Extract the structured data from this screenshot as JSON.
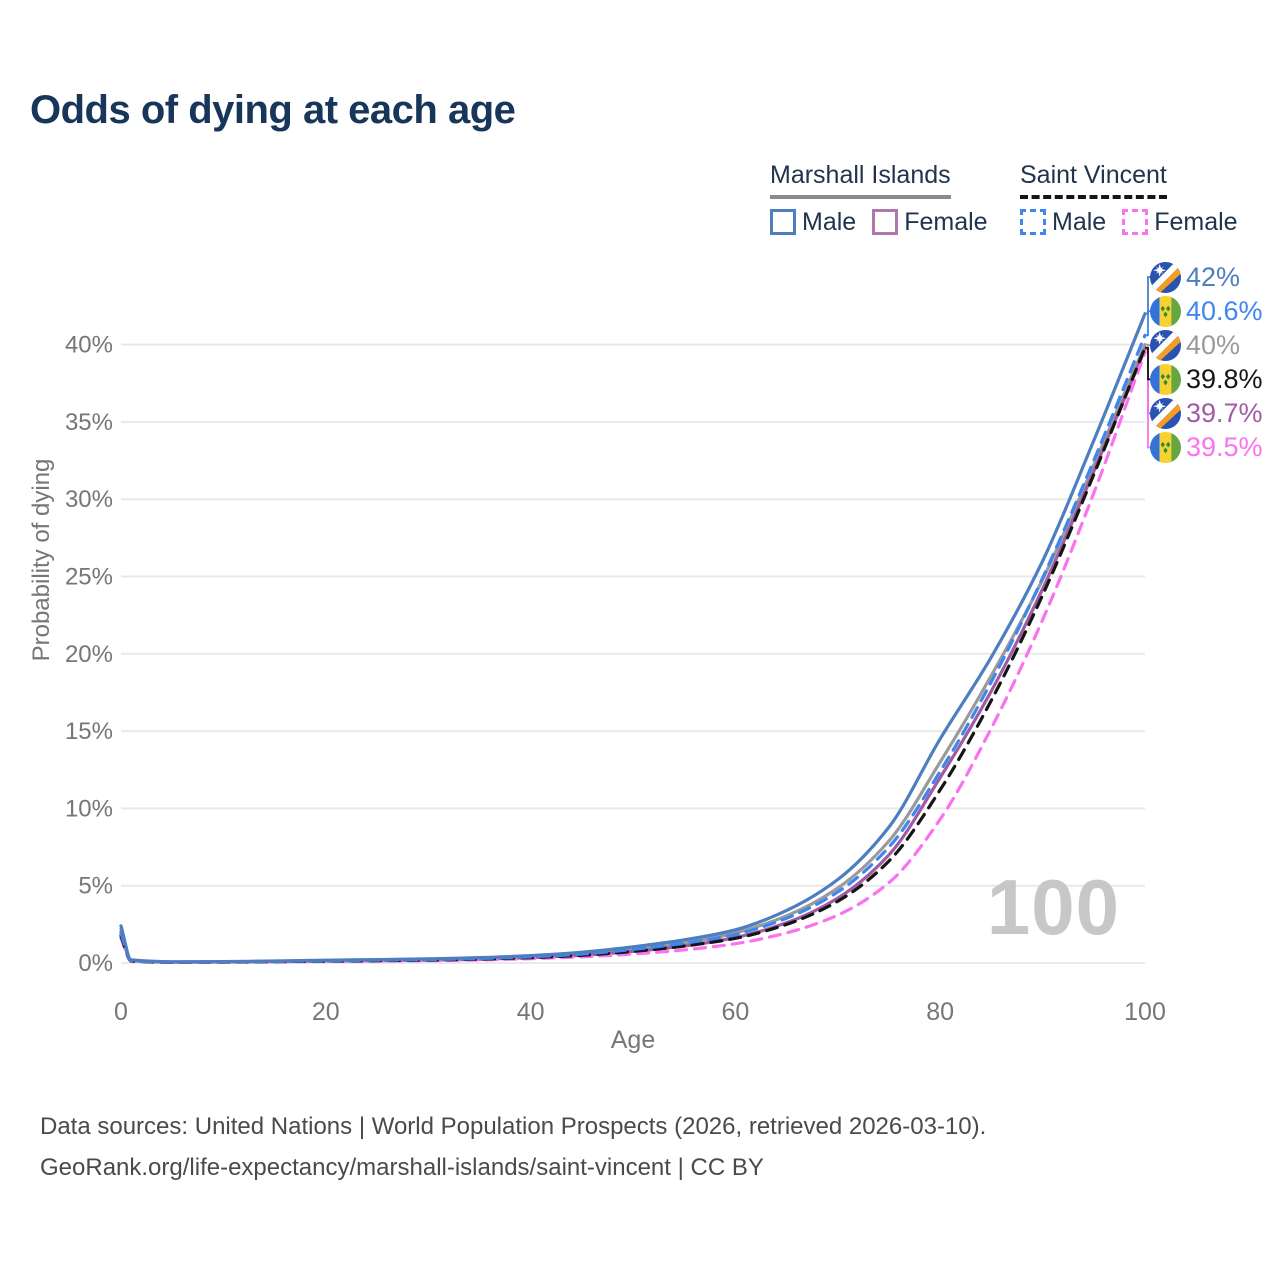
{
  "title": "Odds of dying at each age",
  "legend": {
    "groups": [
      {
        "label": "Marshall Islands",
        "line_color": "#8a8a8a",
        "line_style": "solid",
        "items": [
          {
            "label": "Male",
            "color": "#4d7ec0",
            "style": "solid"
          },
          {
            "label": "Female",
            "color": "#b176ae",
            "style": "solid"
          }
        ]
      },
      {
        "label": "Saint Vincent",
        "line_color": "#151515",
        "line_style": "dashed",
        "items": [
          {
            "label": "Male",
            "color": "#3f86f0",
            "style": "dashed"
          },
          {
            "label": "Female",
            "color": "#fb72ef",
            "style": "dashed"
          }
        ]
      }
    ]
  },
  "chart_data": {
    "type": "line",
    "title": "Odds of dying at each age",
    "xlabel": "Age",
    "ylabel": "Probability of dying",
    "x_ticks": [
      0,
      20,
      40,
      60,
      80,
      100
    ],
    "y_ticks": [
      "0%",
      "5%",
      "10%",
      "15%",
      "20%",
      "25%",
      "30%",
      "35%",
      "40%"
    ],
    "xlim": [
      0,
      100
    ],
    "ylim_pct": [
      0,
      44
    ],
    "grid": "horizontal",
    "legend_position": "top-right",
    "hovered_age": "100",
    "ages": [
      0,
      1,
      5,
      10,
      15,
      20,
      25,
      30,
      35,
      40,
      45,
      50,
      55,
      60,
      65,
      70,
      75,
      80,
      85,
      90,
      95,
      100
    ],
    "series": [
      {
        "name": "Marshall Islands — overall",
        "country": "Marshall Islands",
        "sex": "Both",
        "color": "#9a9a9a",
        "dash": "none",
        "end_label_index": 2,
        "values_pct": [
          2.2,
          0.17,
          0.07,
          0.08,
          0.11,
          0.15,
          0.18,
          0.22,
          0.3,
          0.42,
          0.6,
          0.9,
          1.3,
          1.95,
          3.05,
          4.85,
          7.9,
          13.0,
          18.6,
          24.8,
          32.2,
          40.0
        ]
      },
      {
        "name": "Marshall Islands — Female",
        "country": "Marshall Islands",
        "sex": "Female",
        "color": "#a05ca3",
        "dash": "none",
        "end_label_index": 4,
        "values_pct": [
          2.0,
          0.16,
          0.06,
          0.07,
          0.09,
          0.12,
          0.15,
          0.18,
          0.24,
          0.35,
          0.5,
          0.75,
          1.1,
          1.65,
          2.6,
          4.2,
          7.0,
          12.0,
          17.6,
          24.2,
          31.8,
          39.7
        ]
      },
      {
        "name": "Saint Vincent — Female",
        "country": "Saint Vincent",
        "sex": "Female",
        "color": "#fb72ef",
        "dash": "11 8",
        "end_label_index": 5,
        "values_pct": [
          1.6,
          0.12,
          0.04,
          0.05,
          0.07,
          0.1,
          0.12,
          0.15,
          0.2,
          0.28,
          0.4,
          0.58,
          0.85,
          1.25,
          1.95,
          3.1,
          5.2,
          9.3,
          15.2,
          22.2,
          30.4,
          39.5
        ]
      },
      {
        "name": "Saint Vincent — overall",
        "country": "Saint Vincent",
        "sex": "Both",
        "color": "#151515",
        "dash": "11 8",
        "end_label_index": 3,
        "values_pct": [
          1.75,
          0.13,
          0.05,
          0.06,
          0.09,
          0.12,
          0.15,
          0.19,
          0.25,
          0.35,
          0.5,
          0.75,
          1.1,
          1.6,
          2.5,
          4.0,
          6.6,
          11.2,
          17.0,
          23.8,
          31.6,
          39.8
        ]
      },
      {
        "name": "Saint Vincent — Male",
        "country": "Saint Vincent",
        "sex": "Male",
        "color": "#3f86f0",
        "dash": "11 8",
        "end_label_index": 1,
        "values_pct": [
          1.9,
          0.15,
          0.06,
          0.07,
          0.1,
          0.14,
          0.18,
          0.22,
          0.29,
          0.4,
          0.58,
          0.88,
          1.28,
          1.85,
          2.9,
          4.6,
          7.5,
          12.4,
          18.2,
          24.9,
          32.5,
          40.6
        ]
      },
      {
        "name": "Marshall Islands — Male",
        "country": "Marshall Islands",
        "sex": "Male",
        "color": "#4d7ec0",
        "dash": "none",
        "end_label_index": 0,
        "values_pct": [
          2.4,
          0.2,
          0.08,
          0.09,
          0.13,
          0.18,
          0.22,
          0.27,
          0.35,
          0.48,
          0.7,
          1.05,
          1.5,
          2.15,
          3.4,
          5.4,
          8.8,
          14.5,
          19.8,
          26.0,
          33.8,
          42.0
        ]
      }
    ]
  },
  "end_labels": [
    {
      "text": "42%",
      "color": "#4d7ec0",
      "flag": "mh",
      "flag_name": "marshall-islands-flag"
    },
    {
      "text": "40.6%",
      "color": "#3f86f0",
      "flag": "vc",
      "flag_name": "saint-vincent-flag"
    },
    {
      "text": "40%",
      "color": "#9a9a9a",
      "flag": "mh",
      "flag_name": "marshall-islands-flag"
    },
    {
      "text": "39.8%",
      "color": "#151515",
      "flag": "vc",
      "flag_name": "saint-vincent-flag"
    },
    {
      "text": "39.7%",
      "color": "#a05ca3",
      "flag": "mh",
      "flag_name": "marshall-islands-flag"
    },
    {
      "text": "39.5%",
      "color": "#fb72ef",
      "flag": "vc",
      "flag_name": "saint-vincent-flag"
    }
  ],
  "watermark": "100",
  "footer": {
    "line1": "Data sources: United Nations | World Population Prospects (2026, retrieved 2026-03-10).",
    "line2": "GeoRank.org/life-expectancy/marshall-islands/saint-vincent | CC BY"
  }
}
